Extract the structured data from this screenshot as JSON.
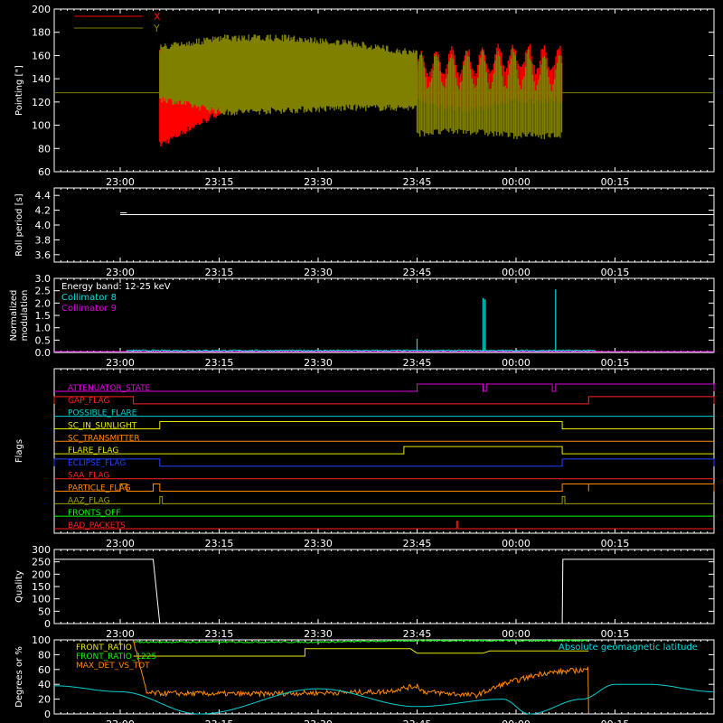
{
  "colors": {
    "background": "#000000",
    "foreground": "#ffffff",
    "x_series": "#ff0000",
    "y_series": "#808000",
    "cyan": "#00e0e0",
    "magenta": "#e000e0",
    "orange": "#ff8800",
    "yellow": "#e8e800",
    "green": "#00ff00",
    "blue": "#0000ff"
  },
  "time_ticks": [
    "23:00",
    "23:15",
    "23:30",
    "23:45",
    "00:00",
    "00:15"
  ],
  "chart_data": [
    {
      "id": "pointing",
      "type": "line",
      "ylabel": "Pointing [\"]",
      "ylim": [
        60,
        200
      ],
      "yticks": [
        "60",
        "80",
        "100",
        "120",
        "140",
        "160",
        "180",
        "200"
      ],
      "legend": [
        "X",
        "Y"
      ],
      "legend_position": "top-left",
      "reference_level": 128,
      "series": [
        {
          "name": "X",
          "segments": [
            {
              "t0": "23:06",
              "t1": "23:45",
              "max": [
                165,
                130,
                132,
                125,
                125
              ],
              "min": [
                80,
                110,
                118,
                118,
                118
              ]
            },
            {
              "t0": "23:45",
              "t1": "00:07",
              "max": [
                165,
                170,
                172,
                170
              ],
              "min": [
                118,
                110,
                118,
                118
              ]
            }
          ]
        },
        {
          "name": "Y",
          "segments": [
            {
              "t0": "23:06",
              "t1": "23:45",
              "max": [
                170,
                178,
                178,
                173,
                165
              ],
              "min": [
                120,
                108,
                110,
                112,
                112
              ]
            },
            {
              "t0": "23:45",
              "t1": "00:07",
              "max": [
                165,
                165,
                167,
                162
              ],
              "min": [
                90,
                92,
                88,
                88
              ]
            }
          ]
        }
      ]
    },
    {
      "id": "roll-period",
      "type": "line",
      "ylabel": "Roll period [s]",
      "ylim": [
        3.5,
        4.5
      ],
      "yticks": [
        "3.6",
        "3.8",
        "4.0",
        "4.2",
        "4.4"
      ],
      "series": [
        {
          "name": "",
          "value": 4.14,
          "t0": "23:00",
          "t1": "00:30"
        }
      ]
    },
    {
      "id": "modulation",
      "type": "line",
      "ylabel_lines": [
        "Normalized",
        "modulation"
      ],
      "ylim": [
        0,
        3.0
      ],
      "yticks": [
        "0.0",
        "0.5",
        "1.0",
        "1.5",
        "2.0",
        "2.5",
        "3.0"
      ],
      "legend_title": "Energy band: 12-25 keV",
      "legend": [
        "Collimator 8",
        "Collimator 9"
      ],
      "legend_position": "top-left",
      "series": [
        {
          "name": "Collimator 8",
          "baseline": 0.08,
          "t0": "23:01",
          "t1": "00:12",
          "spikes": [
            {
              "t": "23:45",
              "value": 0.55
            },
            {
              "t": "23:55",
              "value": 2.2
            },
            {
              "t": "23:55.3",
              "value": 2.15
            },
            {
              "t": "00:06",
              "value": 2.55
            }
          ]
        },
        {
          "name": "Collimator 9",
          "value": 0.0,
          "t0": "22:50",
          "t1": "00:30"
        }
      ]
    },
    {
      "id": "flags",
      "type": "step",
      "ylabel": "Flags",
      "flags": [
        {
          "name": "ATTENUATOR_STATE",
          "color": "#e000e0",
          "highs": [
            [
              "23:45",
              "23:55"
            ],
            [
              "23:55.5",
              "00:05.5"
            ],
            [
              "00:06",
              "00:30"
            ]
          ]
        },
        {
          "name": "GAP_FLAG",
          "color": "#ff2020",
          "highs": [
            [
              "22:50",
              "23:02"
            ],
            [
              "00:11",
              "00:30"
            ]
          ]
        },
        {
          "name": "POSSIBLE_FLARE",
          "color": "#00d0d0",
          "highs": []
        },
        {
          "name": "SC_IN_SUNLIGHT",
          "color": "#e8e800",
          "highs": [
            [
              "23:06",
              "00:07"
            ]
          ]
        },
        {
          "name": "SC_TRANSMITTER",
          "color": "#ff8800",
          "highs": []
        },
        {
          "name": "FLARE_FLAG",
          "color": "#e8e800",
          "highs": [
            [
              "23:43",
              "00:07"
            ]
          ]
        },
        {
          "name": "ECLIPSE_FLAG",
          "color": "#2040ff",
          "highs": [
            [
              "22:50",
              "23:06"
            ],
            [
              "00:07",
              "00:30"
            ]
          ]
        },
        {
          "name": "SAA_FLAG",
          "color": "#ff2020",
          "highs": []
        },
        {
          "name": "PARTICLE_FLAG",
          "color": "#ff8800",
          "highs": [
            [
              "23:00",
              "23:01"
            ],
            [
              "23:05",
              "23:06"
            ],
            [
              "00:07",
              "00:11"
            ],
            [
              "00:11",
              "00:30"
            ]
          ]
        },
        {
          "name": "AAZ_FLAG",
          "color": "#a0a000",
          "highs": [
            [
              "23:06",
              "23:06.4"
            ],
            [
              "00:07",
              "00:07.4"
            ]
          ]
        },
        {
          "name": "FRONTS_OFF",
          "color": "#00ff00",
          "highs": []
        },
        {
          "name": "BAD_PACKETS",
          "color": "#ff2020",
          "highs": [
            [
              "23:51",
              "23:51.2"
            ]
          ]
        }
      ]
    },
    {
      "id": "quality",
      "type": "line",
      "ylabel": "Quality",
      "ylim": [
        0,
        300
      ],
      "yticks": [
        "0",
        "50",
        "100",
        "150",
        "200",
        "250",
        "300"
      ],
      "series": [
        {
          "name": "",
          "points": [
            [
              "22:50",
              260
            ],
            [
              "23:05",
              260
            ],
            [
              "23:06",
              0
            ],
            [
              "00:07",
              0
            ],
            [
              "00:07.1",
              260
            ],
            [
              "00:30",
              260
            ]
          ]
        }
      ]
    },
    {
      "id": "degrees",
      "type": "line",
      "ylabel": "Degrees or %",
      "ylim": [
        0,
        100
      ],
      "yticks": [
        "0",
        "20",
        "40",
        "60",
        "80",
        "100"
      ],
      "legend": [
        "FRONT_RATIO",
        "FRONT_RATIO_1225",
        "MAX_DET_VS_TOT"
      ],
      "annotation": "Absolute geomagnetic latitude",
      "legend_position": "top-left",
      "series": [
        {
          "name": "FRONT_RATIO",
          "color": "#00ff00",
          "points": [
            [
              "23:02",
              97
            ],
            [
              "23:30",
              97
            ],
            [
              "23:45",
              99
            ],
            [
              "00:11",
              99
            ]
          ]
        },
        {
          "name": "FRONT_RATIO_1225",
          "color": "#e8e800",
          "points": [
            [
              "23:02",
              78
            ],
            [
              "23:28",
              78
            ],
            [
              "23:28",
              88
            ],
            [
              "23:44",
              88
            ],
            [
              "23:45",
              82
            ],
            [
              "23:55",
              82
            ],
            [
              "23:56",
              85
            ],
            [
              "00:11",
              85
            ]
          ]
        },
        {
          "name": "MAX_DET_VS_TOT",
          "color": "#ff8800",
          "points": [
            [
              "23:02",
              100
            ],
            [
              "23:04",
              28
            ],
            [
              "23:20",
              27
            ],
            [
              "23:40",
              30
            ],
            [
              "23:45",
              38
            ],
            [
              "23:46",
              30
            ],
            [
              "23:54",
              25
            ],
            [
              "23:58",
              40
            ],
            [
              "00:04",
              55
            ],
            [
              "00:11",
              60
            ],
            [
              "00:11",
              0
            ]
          ]
        },
        {
          "name": "Absolute geomagnetic latitude",
          "color": "#00d0d0",
          "points": [
            [
              "22:50",
              38
            ],
            [
              "23:00",
              30
            ],
            [
              "23:12",
              0
            ],
            [
              "23:30",
              34
            ],
            [
              "23:45",
              10
            ],
            [
              "23:58",
              20
            ],
            [
              "00:02",
              0
            ],
            [
              "00:10",
              20
            ],
            [
              "00:15",
              40
            ],
            [
              "00:20",
              40
            ],
            [
              "00:30",
              30
            ]
          ]
        }
      ]
    }
  ]
}
